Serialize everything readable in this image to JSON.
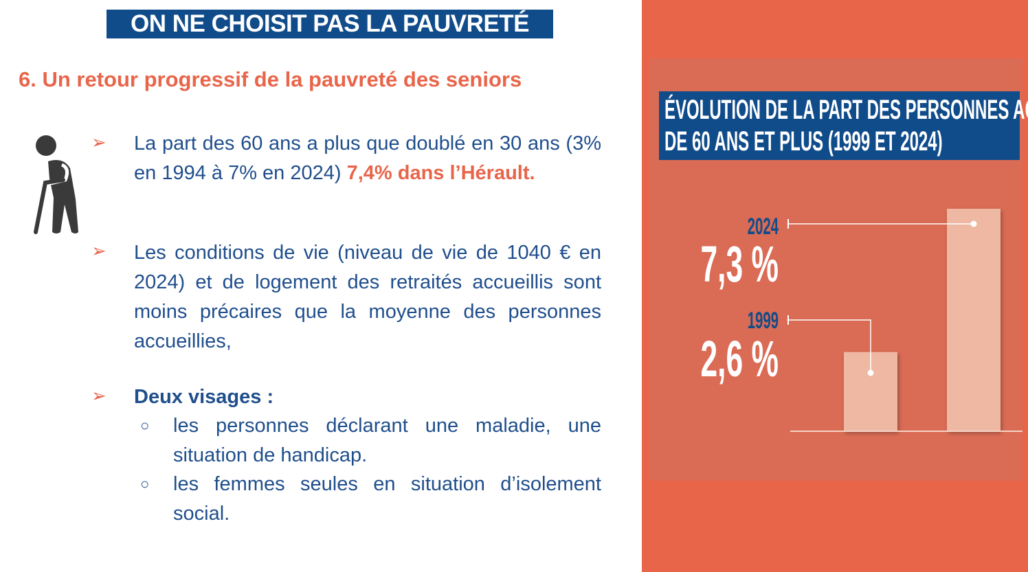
{
  "header": {
    "title": "ON NE CHOISIT PAS LA PAUVRETÉ",
    "subtitle": "6. Un retour progressif de la pauvreté des seniors"
  },
  "icons": {
    "person": "elderly-person-with-cane-icon",
    "bullet": "arrow-bullet-icon",
    "sub_bullet": "circle-bullet-icon"
  },
  "bullets": [
    {
      "text": "La part des 60 ans a plus que doublé en 30 ans (3% en 1994 à 7% en 2024) ",
      "highlight": " 7,4% dans l’Hérault."
    },
    {
      "text": "Les conditions de vie (niveau de vie de 1040 € en 2024) et de logement des retraités accueillis sont moins précaires que la moyenne des personnes accueillies,"
    },
    {
      "text": "Deux visages :",
      "sub": [
        "les personnes déclarant une maladie, une situation de handicap.",
        "les femmes seules en situation d’isolement social."
      ]
    }
  ],
  "colors": {
    "accent": "#E8654A",
    "navy": "#114C8A",
    "text": "#1F4E8C",
    "panel": "#DA6B55",
    "bar": "#EEB8A2"
  },
  "chart_data": {
    "type": "bar",
    "title_line1": "ÉVOLUTION DE LA PART DES PERSONNES AGÉES",
    "title_line2": "DE 60 ANS ET PLUS  (1999 ET 2024)",
    "categories": [
      "1999",
      "2024"
    ],
    "values": [
      2.6,
      7.3
    ],
    "labels": [
      "2,6 %",
      "7,3 %"
    ],
    "unit": "%",
    "ylim": [
      0,
      7.3
    ],
    "grid": false
  }
}
